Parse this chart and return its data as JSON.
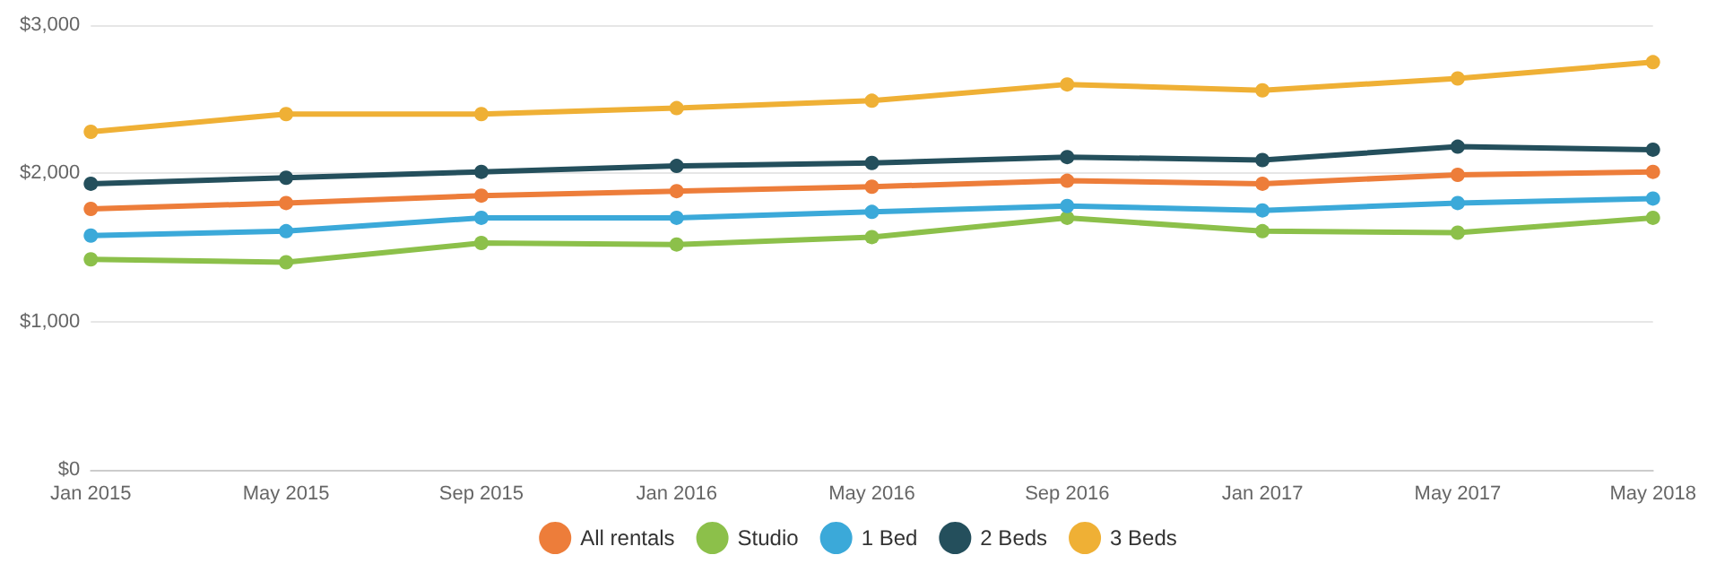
{
  "chart_data": {
    "type": "line",
    "categories": [
      "Jan 2015",
      "May 2015",
      "Sep 2015",
      "Jan 2016",
      "May 2016",
      "Sep 2016",
      "Jan 2017",
      "May 2017",
      "May 2018"
    ],
    "ylim": [
      0,
      3000
    ],
    "yticks": [
      {
        "value": 0,
        "label": "$0"
      },
      {
        "value": 1000,
        "label": "$1,000"
      },
      {
        "value": 2000,
        "label": "$2,000"
      },
      {
        "value": 3000,
        "label": "$3,000"
      }
    ],
    "grid": "y",
    "legend": "bottom",
    "marker": "circle",
    "line_style": "solid",
    "series": [
      {
        "name": "All rentals",
        "color": "#ed7d3a",
        "values": [
          1760,
          1800,
          1850,
          1880,
          1910,
          1950,
          1930,
          1990,
          2010
        ]
      },
      {
        "name": "Studio",
        "color": "#8cc04a",
        "values": [
          1420,
          1400,
          1530,
          1520,
          1570,
          1700,
          1610,
          1600,
          1700
        ]
      },
      {
        "name": "1 Bed",
        "color": "#3ba9d9",
        "values": [
          1580,
          1610,
          1700,
          1700,
          1740,
          1780,
          1750,
          1800,
          1830
        ]
      },
      {
        "name": "2 Beds",
        "color": "#244f5c",
        "values": [
          1930,
          1970,
          2010,
          2050,
          2070,
          2110,
          2090,
          2180,
          2160
        ]
      },
      {
        "name": "3 Beds",
        "color": "#efb035",
        "values": [
          2280,
          2400,
          2400,
          2440,
          2490,
          2600,
          2560,
          2640,
          2750
        ]
      }
    ]
  }
}
